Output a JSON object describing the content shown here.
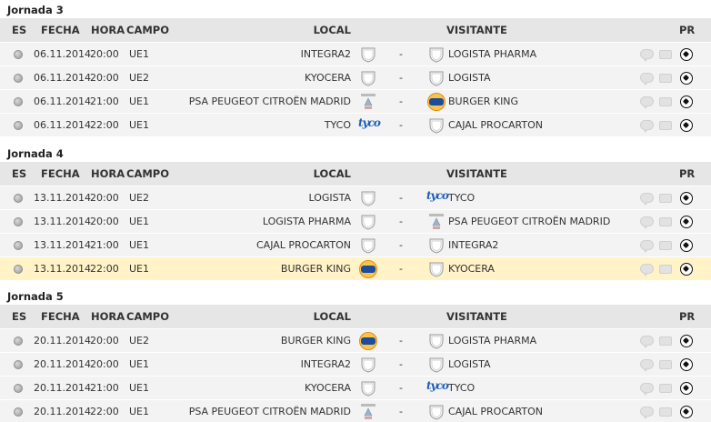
{
  "headers": {
    "es": "ES",
    "fecha": "FECHA",
    "hora": "HORA",
    "campo": "CAMPO",
    "local": "LOCAL",
    "visitante": "VISITANTE",
    "pr": "PR"
  },
  "jornadas": [
    {
      "title": "Jornada 3",
      "matches": [
        {
          "fecha": "06.11.2014",
          "hora": "20:00",
          "campo": "UE1",
          "local": "INTEGRA2",
          "local_logo": "shield",
          "dash": "-",
          "visitante": "LOGISTA PHARMA",
          "visitante_logo": "shield"
        },
        {
          "fecha": "06.11.2014",
          "hora": "20:00",
          "campo": "UE2",
          "local": "KYOCERA",
          "local_logo": "shield",
          "dash": "-",
          "visitante": "LOGISTA",
          "visitante_logo": "shield"
        },
        {
          "fecha": "06.11.2014",
          "hora": "21:00",
          "campo": "UE1",
          "local": "PSA PEUGEOT CITROËN MADRID",
          "local_logo": "psa",
          "dash": "-",
          "visitante": "BURGER KING",
          "visitante_logo": "bk"
        },
        {
          "fecha": "06.11.2014",
          "hora": "22:00",
          "campo": "UE1",
          "local": "TYCO",
          "local_logo": "tyco",
          "dash": "-",
          "visitante": "CAJAL PROCARTON",
          "visitante_logo": "shield"
        }
      ]
    },
    {
      "title": "Jornada 4",
      "matches": [
        {
          "fecha": "13.11.2014",
          "hora": "20:00",
          "campo": "UE2",
          "local": "LOGISTA",
          "local_logo": "shield",
          "dash": "-",
          "visitante": "TYCO",
          "visitante_logo": "tyco"
        },
        {
          "fecha": "13.11.2014",
          "hora": "20:00",
          "campo": "UE1",
          "local": "LOGISTA PHARMA",
          "local_logo": "shield",
          "dash": "-",
          "visitante": "PSA PEUGEOT CITROËN MADRID",
          "visitante_logo": "psa"
        },
        {
          "fecha": "13.11.2014",
          "hora": "21:00",
          "campo": "UE1",
          "local": "CAJAL PROCARTON",
          "local_logo": "shield",
          "dash": "-",
          "visitante": "INTEGRA2",
          "visitante_logo": "shield"
        },
        {
          "fecha": "13.11.2014",
          "hora": "22:00",
          "campo": "UE1",
          "local": "BURGER KING",
          "local_logo": "bk",
          "dash": "-",
          "visitante": "KYOCERA",
          "visitante_logo": "shield",
          "highlight": true
        }
      ]
    },
    {
      "title": "Jornada 5",
      "matches": [
        {
          "fecha": "20.11.2014",
          "hora": "20:00",
          "campo": "UE2",
          "local": "BURGER KING",
          "local_logo": "bk",
          "dash": "-",
          "visitante": "LOGISTA PHARMA",
          "visitante_logo": "shield"
        },
        {
          "fecha": "20.11.2014",
          "hora": "20:00",
          "campo": "UE1",
          "local": "INTEGRA2",
          "local_logo": "shield",
          "dash": "-",
          "visitante": "LOGISTA",
          "visitante_logo": "shield"
        },
        {
          "fecha": "20.11.2014",
          "hora": "21:00",
          "campo": "UE1",
          "local": "KYOCERA",
          "local_logo": "shield",
          "dash": "-",
          "visitante": "TYCO",
          "visitante_logo": "tyco"
        },
        {
          "fecha": "20.11.2014",
          "hora": "22:00",
          "campo": "UE1",
          "local": "PSA PEUGEOT CITROËN MADRID",
          "local_logo": "psa",
          "dash": "-",
          "visitante": "CAJAL PROCARTON",
          "visitante_logo": "shield"
        }
      ]
    }
  ],
  "icons": {
    "status": "status-dot-icon",
    "chat": "comment-icon",
    "media": "camera-icon",
    "result": "soccer-ball-icon"
  },
  "colors": {
    "header_bg": "#e6e6e6",
    "row_bg": "#f3f3f3",
    "highlight_bg": "#fff3c7",
    "tyco_blue": "#1d5fb3",
    "bk_blue": "#1d4c9c",
    "bk_gold": "#f6c64a"
  }
}
